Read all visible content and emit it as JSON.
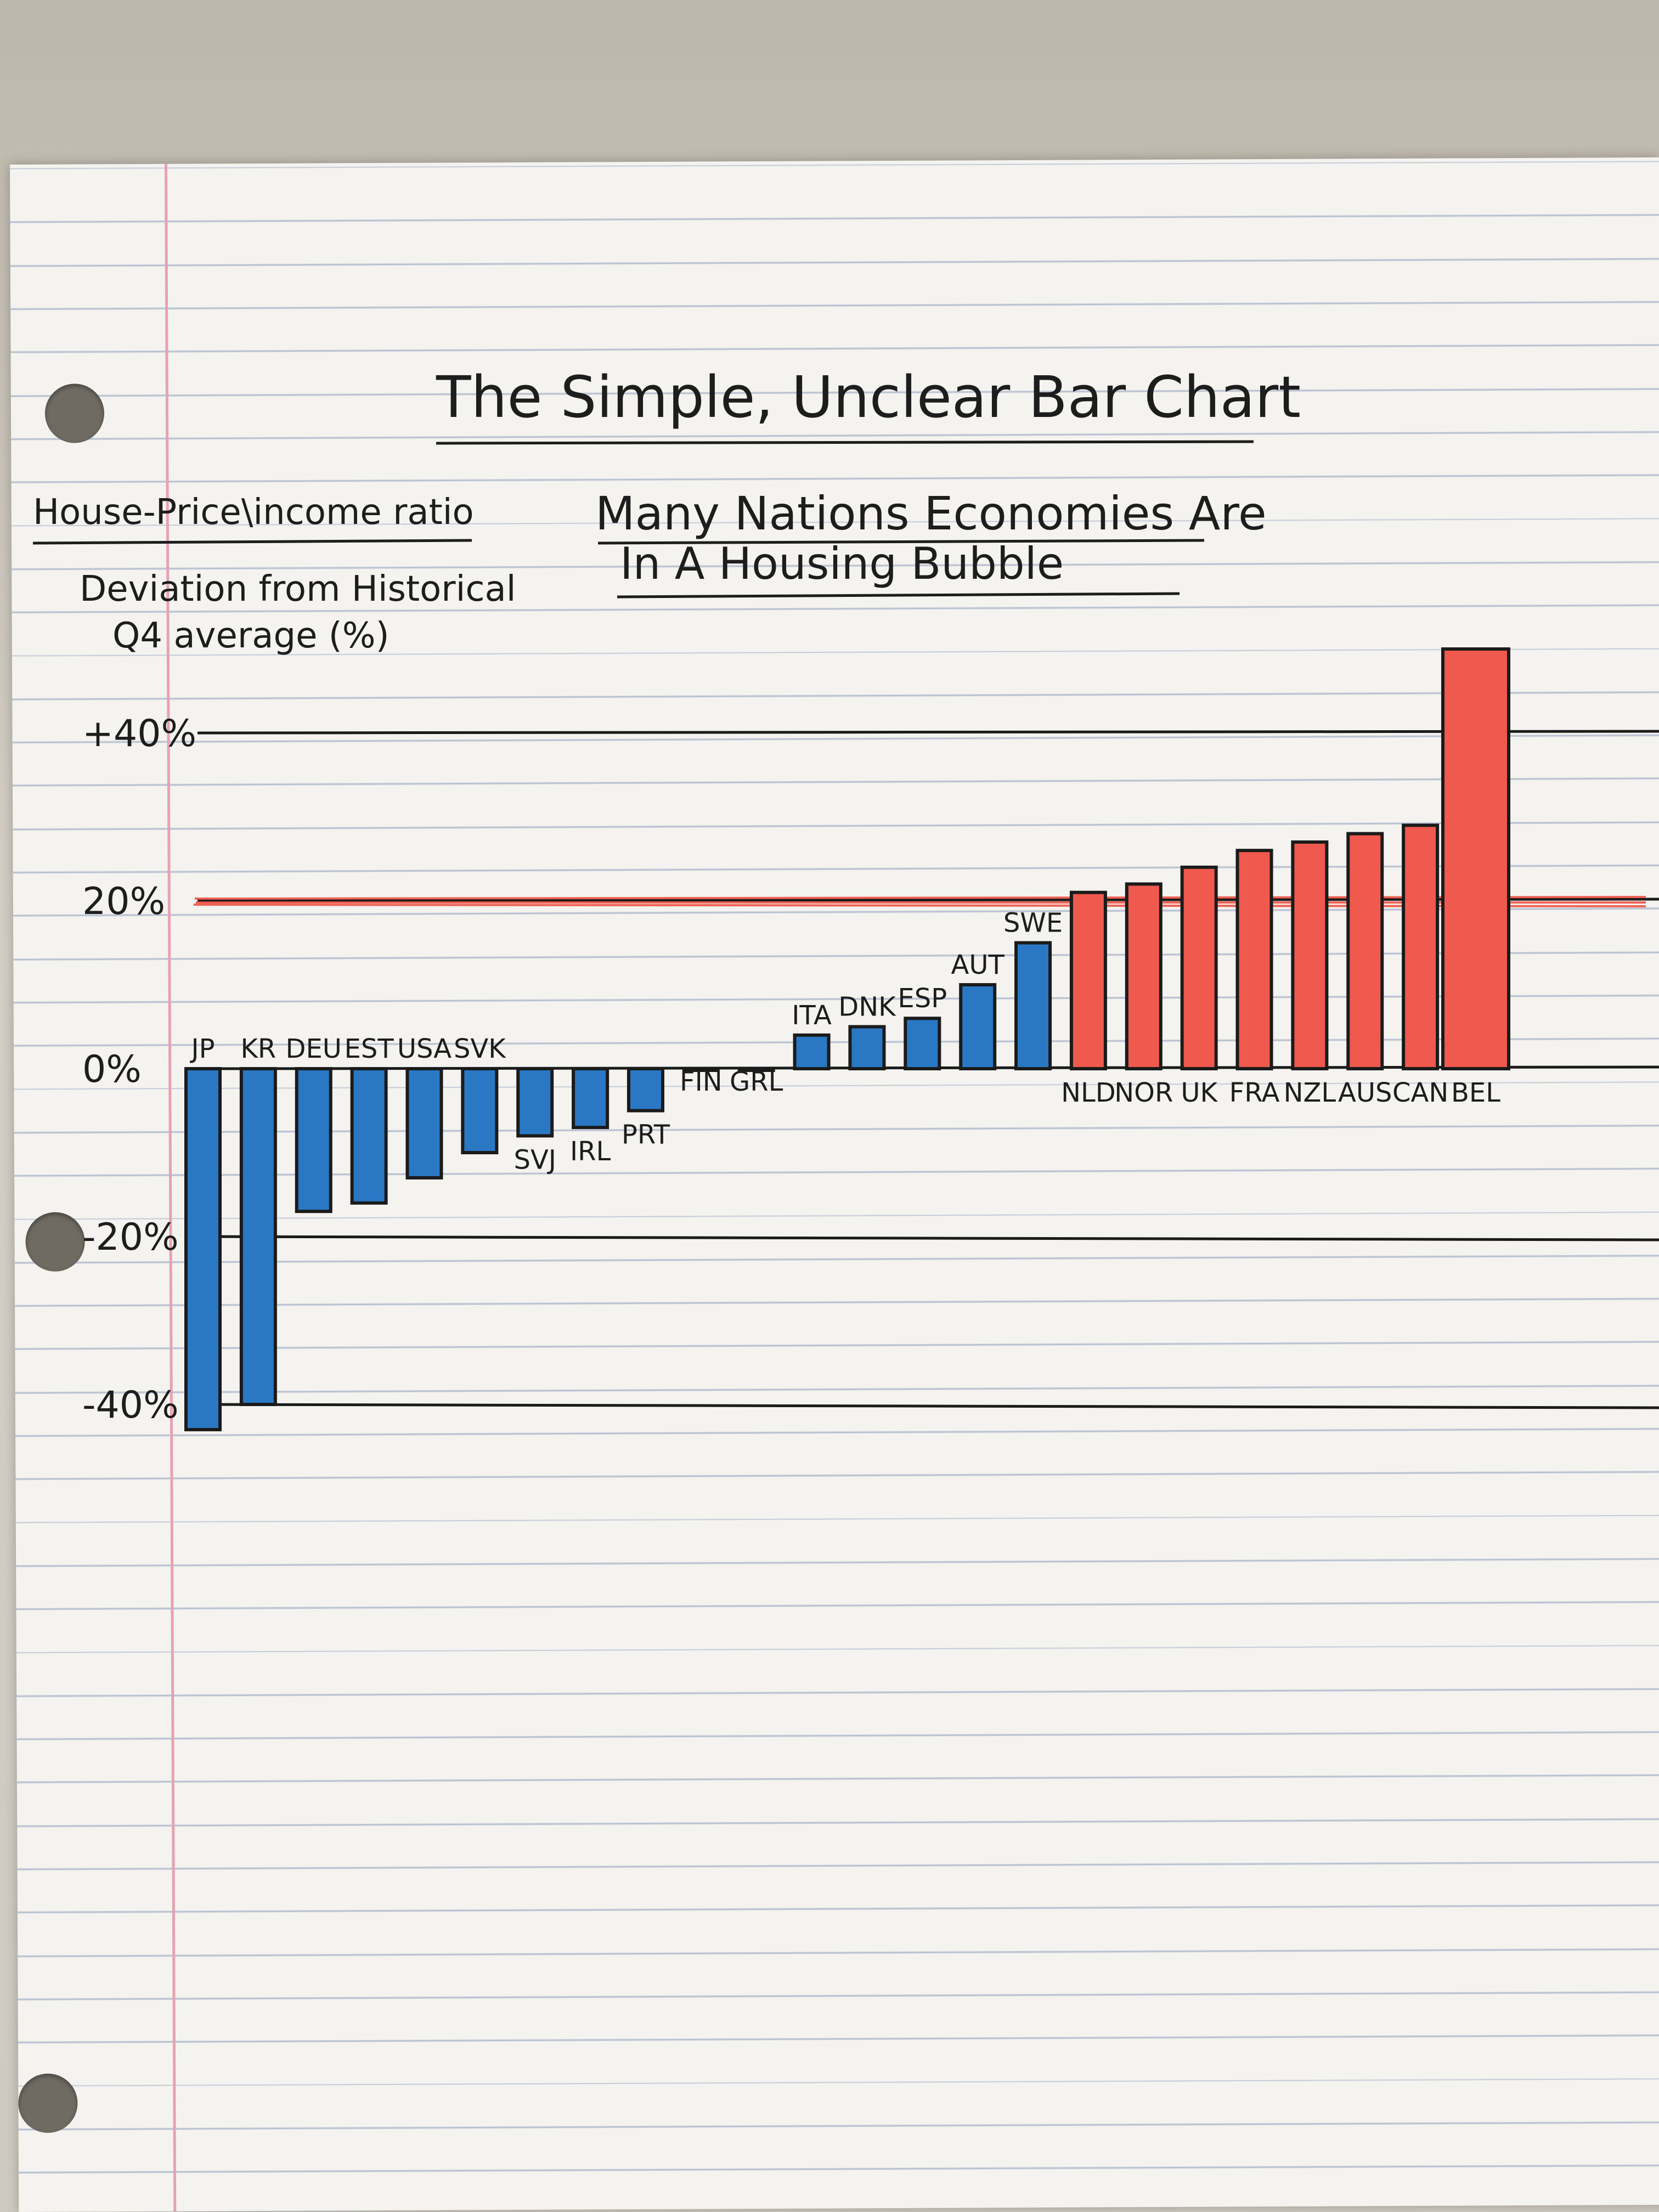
{
  "chart_data": {
    "type": "bar",
    "title": "The Simple, Unclear Bar Chart",
    "subtitle_line1": "Many Nations Economies Are",
    "subtitle_line2": "In A Housing Bubble",
    "ylabel_line1": "House-Price\\income ratio",
    "ylabel_line2": "Deviation from Historical",
    "ylabel_line3": "Q4 average (%)",
    "yticks": [
      "+40%",
      "20%",
      "0%",
      "-20%",
      "-40%"
    ],
    "ytick_values": [
      40,
      20,
      0,
      -20,
      -40
    ],
    "ylim": [
      -45,
      52
    ],
    "grid": true,
    "reference_line": 20,
    "categories": [
      "JP",
      "KR",
      "DEU",
      "EST",
      "USA",
      "SVK",
      "SVJ",
      "IRL",
      "PRT",
      "FIN",
      "GRL",
      "ITA",
      "DNK",
      "ESP",
      "AUT",
      "SWE",
      "NLD",
      "NOR",
      "UK",
      "FRA",
      "NZL",
      "AUS",
      "CAN",
      "BEL"
    ],
    "values": [
      -43,
      -40,
      -17,
      -16,
      -13,
      -10,
      -8,
      -7,
      -5,
      0,
      0,
      4,
      5,
      6,
      10,
      15,
      21,
      22,
      24,
      26,
      27,
      28,
      29,
      50
    ],
    "colors": {
      "negative": "#2a78c4",
      "positive": "#f0594d",
      "line": "#1b1b1b",
      "reference": "#ee4b3c"
    }
  }
}
